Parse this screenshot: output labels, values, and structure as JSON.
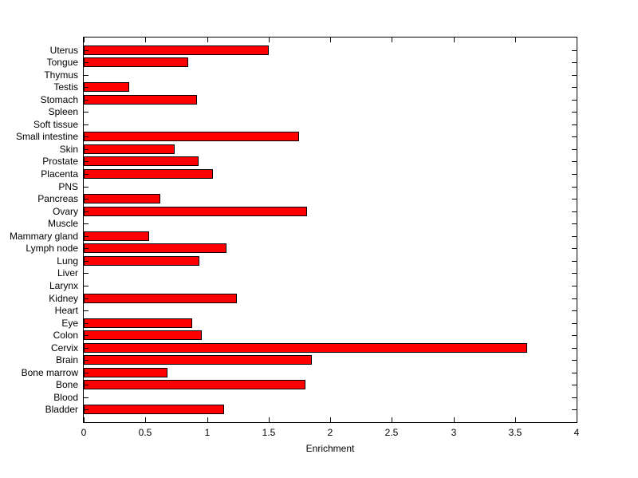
{
  "figure": {
    "background": "#ffffff",
    "plot_background": "#ffffff",
    "axis_color": "#000000"
  },
  "chart_data": {
    "type": "bar",
    "orientation": "horizontal",
    "title": "",
    "xlabel": "Enrichment",
    "ylabel": "",
    "xlim": [
      0,
      4
    ],
    "xticks": [
      0,
      0.5,
      1,
      1.5,
      2,
      2.5,
      3,
      3.5,
      4
    ],
    "xtick_labels": [
      "0",
      "0.5",
      "1",
      "1.5",
      "2",
      "2.5",
      "3",
      "3.5",
      "4"
    ],
    "grid": false,
    "legend_position": "none",
    "bar_color": "#ff0000",
    "bar_edge_color": "#000000",
    "categories": [
      "Uterus",
      "Tongue",
      "Thymus",
      "Testis",
      "Stomach",
      "Spleen",
      "Soft tissue",
      "Small intestine",
      "Skin",
      "Prostate",
      "Placenta",
      "PNS",
      "Pancreas",
      "Ovary",
      "Muscle",
      "Mammary gland",
      "Lymph node",
      "Lung",
      "Liver",
      "Larynx",
      "Kidney",
      "Heart",
      "Eye",
      "Colon",
      "Cervix",
      "Brain",
      "Bone marrow",
      "Bone",
      "Blood",
      "Bladder"
    ],
    "values": [
      1.5,
      0.85,
      0,
      0.37,
      0.92,
      0,
      0,
      1.75,
      0.74,
      0.93,
      1.05,
      0,
      0.62,
      1.81,
      0,
      0.53,
      1.16,
      0.94,
      0,
      0,
      1.24,
      0,
      0.88,
      0.96,
      3.6,
      1.85,
      0.68,
      1.8,
      0,
      1.14
    ]
  }
}
